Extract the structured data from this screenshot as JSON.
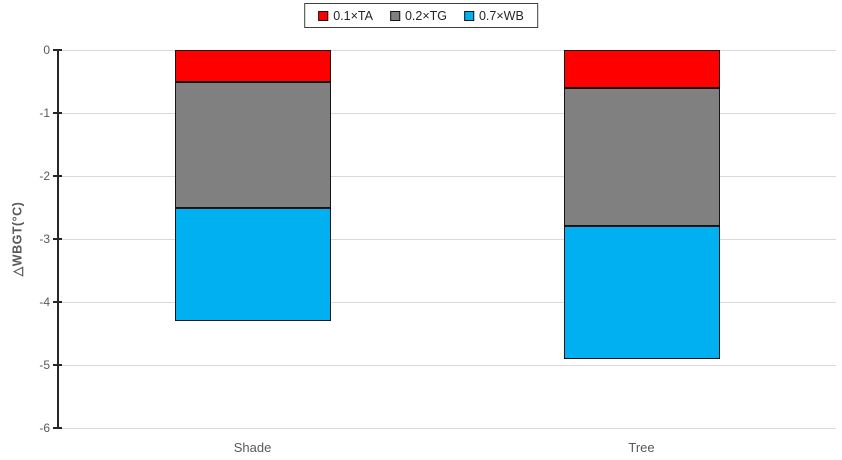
{
  "chart_data": {
    "type": "bar",
    "stacked": true,
    "orientation": "vertical",
    "title": "",
    "categories": [
      "Shade",
      "Tree"
    ],
    "series": [
      {
        "name": "0.1×TA",
        "color": "#FF0000",
        "values": [
          -0.5,
          -0.6
        ]
      },
      {
        "name": "0.2×TG",
        "color": "#808080",
        "values": [
          -2.0,
          -2.2
        ]
      },
      {
        "name": "0.7×WB",
        "color": "#00B0F0",
        "values": [
          -1.8,
          -2.1
        ]
      }
    ],
    "stack_totals": [
      -4.3,
      -4.9
    ],
    "xlabel": "",
    "ylabel": "△WBGT(°C)",
    "ylim": [
      -6,
      0
    ],
    "yticks": [
      0,
      -1,
      -2,
      -3,
      -4,
      -5,
      -6
    ],
    "ytick_labels": [
      "0",
      "-1",
      "-2",
      "-3",
      "-4",
      "-5",
      "-6"
    ],
    "grid": true,
    "legend_position": "top-center",
    "colors": {
      "gridline": "#D9D9D9",
      "axis_line": "#262626",
      "tick_label": "#595959",
      "bar_border": "#141414",
      "legend_border": "#404040"
    }
  }
}
